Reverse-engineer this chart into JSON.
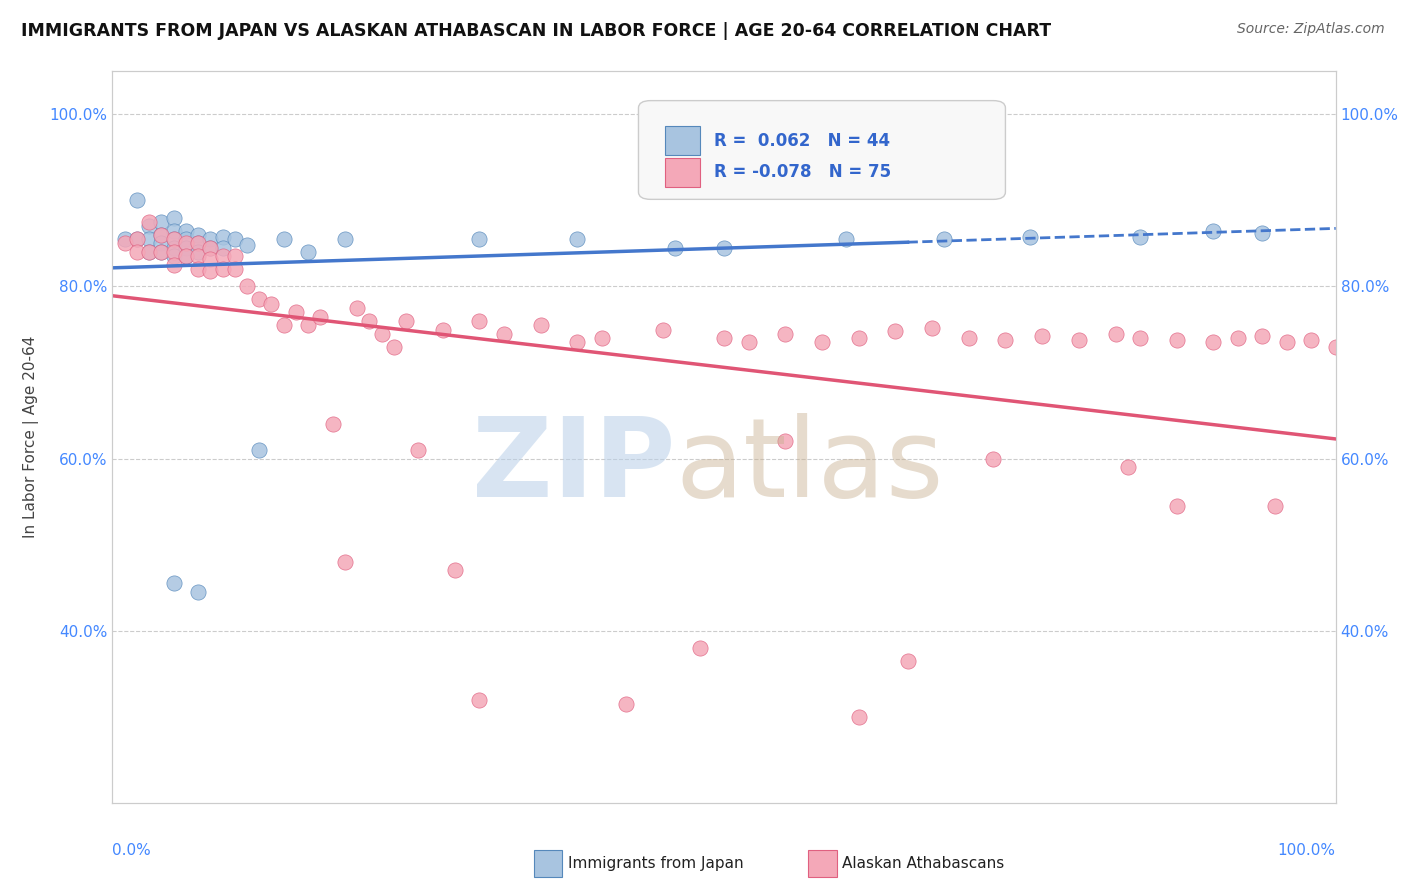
{
  "title": "IMMIGRANTS FROM JAPAN VS ALASKAN ATHABASCAN IN LABOR FORCE | AGE 20-64 CORRELATION CHART",
  "source": "Source: ZipAtlas.com",
  "ylabel": "In Labor Force | Age 20-64",
  "xlim": [
    0.0,
    1.0
  ],
  "ylim": [
    0.2,
    1.05
  ],
  "yticks": [
    0.4,
    0.6,
    0.8,
    1.0
  ],
  "ytick_labels": [
    "40.0%",
    "60.0%",
    "80.0%",
    "100.0%"
  ],
  "blue_color": "#a8c4e0",
  "pink_color": "#f4a8b8",
  "blue_edge_color": "#5588bb",
  "pink_edge_color": "#e06080",
  "blue_line_color": "#4477cc",
  "pink_line_color": "#e05575",
  "background_color": "#ffffff",
  "title_color": "#111111",
  "source_color": "#666666",
  "tick_label_color": "#4488ff",
  "blue_x": [
    0.01,
    0.02,
    0.02,
    0.03,
    0.03,
    0.03,
    0.04,
    0.04,
    0.04,
    0.04,
    0.05,
    0.05,
    0.05,
    0.05,
    0.05,
    0.06,
    0.06,
    0.06,
    0.06,
    0.07,
    0.07,
    0.07,
    0.08,
    0.08,
    0.09,
    0.09,
    0.1,
    0.11,
    0.12,
    0.14,
    0.16,
    0.19,
    0.3,
    0.38,
    0.46,
    0.5,
    0.6,
    0.68,
    0.75,
    0.84,
    0.9,
    0.94,
    0.05,
    0.07
  ],
  "blue_y": [
    0.855,
    0.9,
    0.855,
    0.87,
    0.855,
    0.84,
    0.875,
    0.86,
    0.85,
    0.84,
    0.88,
    0.865,
    0.855,
    0.845,
    0.835,
    0.865,
    0.855,
    0.845,
    0.835,
    0.86,
    0.85,
    0.84,
    0.855,
    0.845,
    0.858,
    0.845,
    0.855,
    0.848,
    0.61,
    0.855,
    0.84,
    0.855,
    0.855,
    0.855,
    0.845,
    0.845,
    0.855,
    0.855,
    0.858,
    0.858,
    0.865,
    0.862,
    0.455,
    0.445
  ],
  "pink_x": [
    0.01,
    0.02,
    0.02,
    0.03,
    0.03,
    0.04,
    0.04,
    0.05,
    0.05,
    0.05,
    0.06,
    0.06,
    0.07,
    0.07,
    0.07,
    0.08,
    0.08,
    0.08,
    0.09,
    0.09,
    0.1,
    0.1,
    0.11,
    0.12,
    0.13,
    0.14,
    0.15,
    0.16,
    0.17,
    0.2,
    0.21,
    0.22,
    0.23,
    0.24,
    0.27,
    0.3,
    0.32,
    0.35,
    0.38,
    0.4,
    0.45,
    0.5,
    0.52,
    0.55,
    0.58,
    0.61,
    0.64,
    0.67,
    0.7,
    0.73,
    0.76,
    0.79,
    0.82,
    0.84,
    0.87,
    0.9,
    0.92,
    0.94,
    0.96,
    0.98,
    1.0,
    0.18,
    0.25,
    0.55,
    0.72,
    0.83,
    0.19,
    0.28,
    0.48,
    0.65,
    0.87,
    0.3,
    0.42,
    0.61,
    0.95
  ],
  "pink_y": [
    0.85,
    0.855,
    0.84,
    0.875,
    0.84,
    0.86,
    0.84,
    0.855,
    0.84,
    0.825,
    0.85,
    0.835,
    0.85,
    0.835,
    0.82,
    0.845,
    0.832,
    0.818,
    0.835,
    0.82,
    0.835,
    0.82,
    0.8,
    0.785,
    0.78,
    0.755,
    0.77,
    0.755,
    0.765,
    0.775,
    0.76,
    0.745,
    0.73,
    0.76,
    0.75,
    0.76,
    0.745,
    0.755,
    0.735,
    0.74,
    0.75,
    0.74,
    0.735,
    0.745,
    0.735,
    0.74,
    0.748,
    0.752,
    0.74,
    0.738,
    0.742,
    0.738,
    0.745,
    0.74,
    0.738,
    0.735,
    0.74,
    0.742,
    0.735,
    0.738,
    0.73,
    0.64,
    0.61,
    0.62,
    0.6,
    0.59,
    0.48,
    0.47,
    0.38,
    0.365,
    0.545,
    0.32,
    0.315,
    0.3,
    0.545
  ]
}
